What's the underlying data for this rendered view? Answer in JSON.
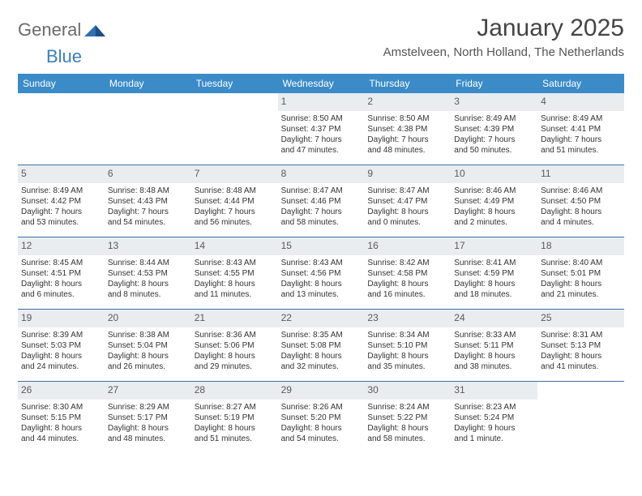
{
  "brand": {
    "part1": "General",
    "part2": "Blue"
  },
  "title": "January 2025",
  "location": "Amstelveen, North Holland, The Netherlands",
  "colors": {
    "header_bg": "#3b8bc8",
    "header_text": "#ffffff",
    "daynum_bg": "#e9edf0",
    "daynum_text": "#5a5a5a",
    "rule": "#3b6fa5",
    "body_text": "#333333",
    "logo_gray": "#6b6b6b",
    "logo_blue": "#3a7fbf"
  },
  "day_headers": [
    "Sunday",
    "Monday",
    "Tuesday",
    "Wednesday",
    "Thursday",
    "Friday",
    "Saturday"
  ],
  "weeks": [
    [
      null,
      null,
      null,
      {
        "n": "1",
        "sunrise": "8:50 AM",
        "sunset": "4:37 PM",
        "daylight": "7 hours and 47 minutes."
      },
      {
        "n": "2",
        "sunrise": "8:50 AM",
        "sunset": "4:38 PM",
        "daylight": "7 hours and 48 minutes."
      },
      {
        "n": "3",
        "sunrise": "8:49 AM",
        "sunset": "4:39 PM",
        "daylight": "7 hours and 50 minutes."
      },
      {
        "n": "4",
        "sunrise": "8:49 AM",
        "sunset": "4:41 PM",
        "daylight": "7 hours and 51 minutes."
      }
    ],
    [
      {
        "n": "5",
        "sunrise": "8:49 AM",
        "sunset": "4:42 PM",
        "daylight": "7 hours and 53 minutes."
      },
      {
        "n": "6",
        "sunrise": "8:48 AM",
        "sunset": "4:43 PM",
        "daylight": "7 hours and 54 minutes."
      },
      {
        "n": "7",
        "sunrise": "8:48 AM",
        "sunset": "4:44 PM",
        "daylight": "7 hours and 56 minutes."
      },
      {
        "n": "8",
        "sunrise": "8:47 AM",
        "sunset": "4:46 PM",
        "daylight": "7 hours and 58 minutes."
      },
      {
        "n": "9",
        "sunrise": "8:47 AM",
        "sunset": "4:47 PM",
        "daylight": "8 hours and 0 minutes."
      },
      {
        "n": "10",
        "sunrise": "8:46 AM",
        "sunset": "4:49 PM",
        "daylight": "8 hours and 2 minutes."
      },
      {
        "n": "11",
        "sunrise": "8:46 AM",
        "sunset": "4:50 PM",
        "daylight": "8 hours and 4 minutes."
      }
    ],
    [
      {
        "n": "12",
        "sunrise": "8:45 AM",
        "sunset": "4:51 PM",
        "daylight": "8 hours and 6 minutes."
      },
      {
        "n": "13",
        "sunrise": "8:44 AM",
        "sunset": "4:53 PM",
        "daylight": "8 hours and 8 minutes."
      },
      {
        "n": "14",
        "sunrise": "8:43 AM",
        "sunset": "4:55 PM",
        "daylight": "8 hours and 11 minutes."
      },
      {
        "n": "15",
        "sunrise": "8:43 AM",
        "sunset": "4:56 PM",
        "daylight": "8 hours and 13 minutes."
      },
      {
        "n": "16",
        "sunrise": "8:42 AM",
        "sunset": "4:58 PM",
        "daylight": "8 hours and 16 minutes."
      },
      {
        "n": "17",
        "sunrise": "8:41 AM",
        "sunset": "4:59 PM",
        "daylight": "8 hours and 18 minutes."
      },
      {
        "n": "18",
        "sunrise": "8:40 AM",
        "sunset": "5:01 PM",
        "daylight": "8 hours and 21 minutes."
      }
    ],
    [
      {
        "n": "19",
        "sunrise": "8:39 AM",
        "sunset": "5:03 PM",
        "daylight": "8 hours and 24 minutes."
      },
      {
        "n": "20",
        "sunrise": "8:38 AM",
        "sunset": "5:04 PM",
        "daylight": "8 hours and 26 minutes."
      },
      {
        "n": "21",
        "sunrise": "8:36 AM",
        "sunset": "5:06 PM",
        "daylight": "8 hours and 29 minutes."
      },
      {
        "n": "22",
        "sunrise": "8:35 AM",
        "sunset": "5:08 PM",
        "daylight": "8 hours and 32 minutes."
      },
      {
        "n": "23",
        "sunrise": "8:34 AM",
        "sunset": "5:10 PM",
        "daylight": "8 hours and 35 minutes."
      },
      {
        "n": "24",
        "sunrise": "8:33 AM",
        "sunset": "5:11 PM",
        "daylight": "8 hours and 38 minutes."
      },
      {
        "n": "25",
        "sunrise": "8:31 AM",
        "sunset": "5:13 PM",
        "daylight": "8 hours and 41 minutes."
      }
    ],
    [
      {
        "n": "26",
        "sunrise": "8:30 AM",
        "sunset": "5:15 PM",
        "daylight": "8 hours and 44 minutes."
      },
      {
        "n": "27",
        "sunrise": "8:29 AM",
        "sunset": "5:17 PM",
        "daylight": "8 hours and 48 minutes."
      },
      {
        "n": "28",
        "sunrise": "8:27 AM",
        "sunset": "5:19 PM",
        "daylight": "8 hours and 51 minutes."
      },
      {
        "n": "29",
        "sunrise": "8:26 AM",
        "sunset": "5:20 PM",
        "daylight": "8 hours and 54 minutes."
      },
      {
        "n": "30",
        "sunrise": "8:24 AM",
        "sunset": "5:22 PM",
        "daylight": "8 hours and 58 minutes."
      },
      {
        "n": "31",
        "sunrise": "8:23 AM",
        "sunset": "5:24 PM",
        "daylight": "9 hours and 1 minute."
      },
      null
    ]
  ],
  "labels": {
    "sunrise": "Sunrise:",
    "sunset": "Sunset:",
    "daylight": "Daylight:"
  }
}
